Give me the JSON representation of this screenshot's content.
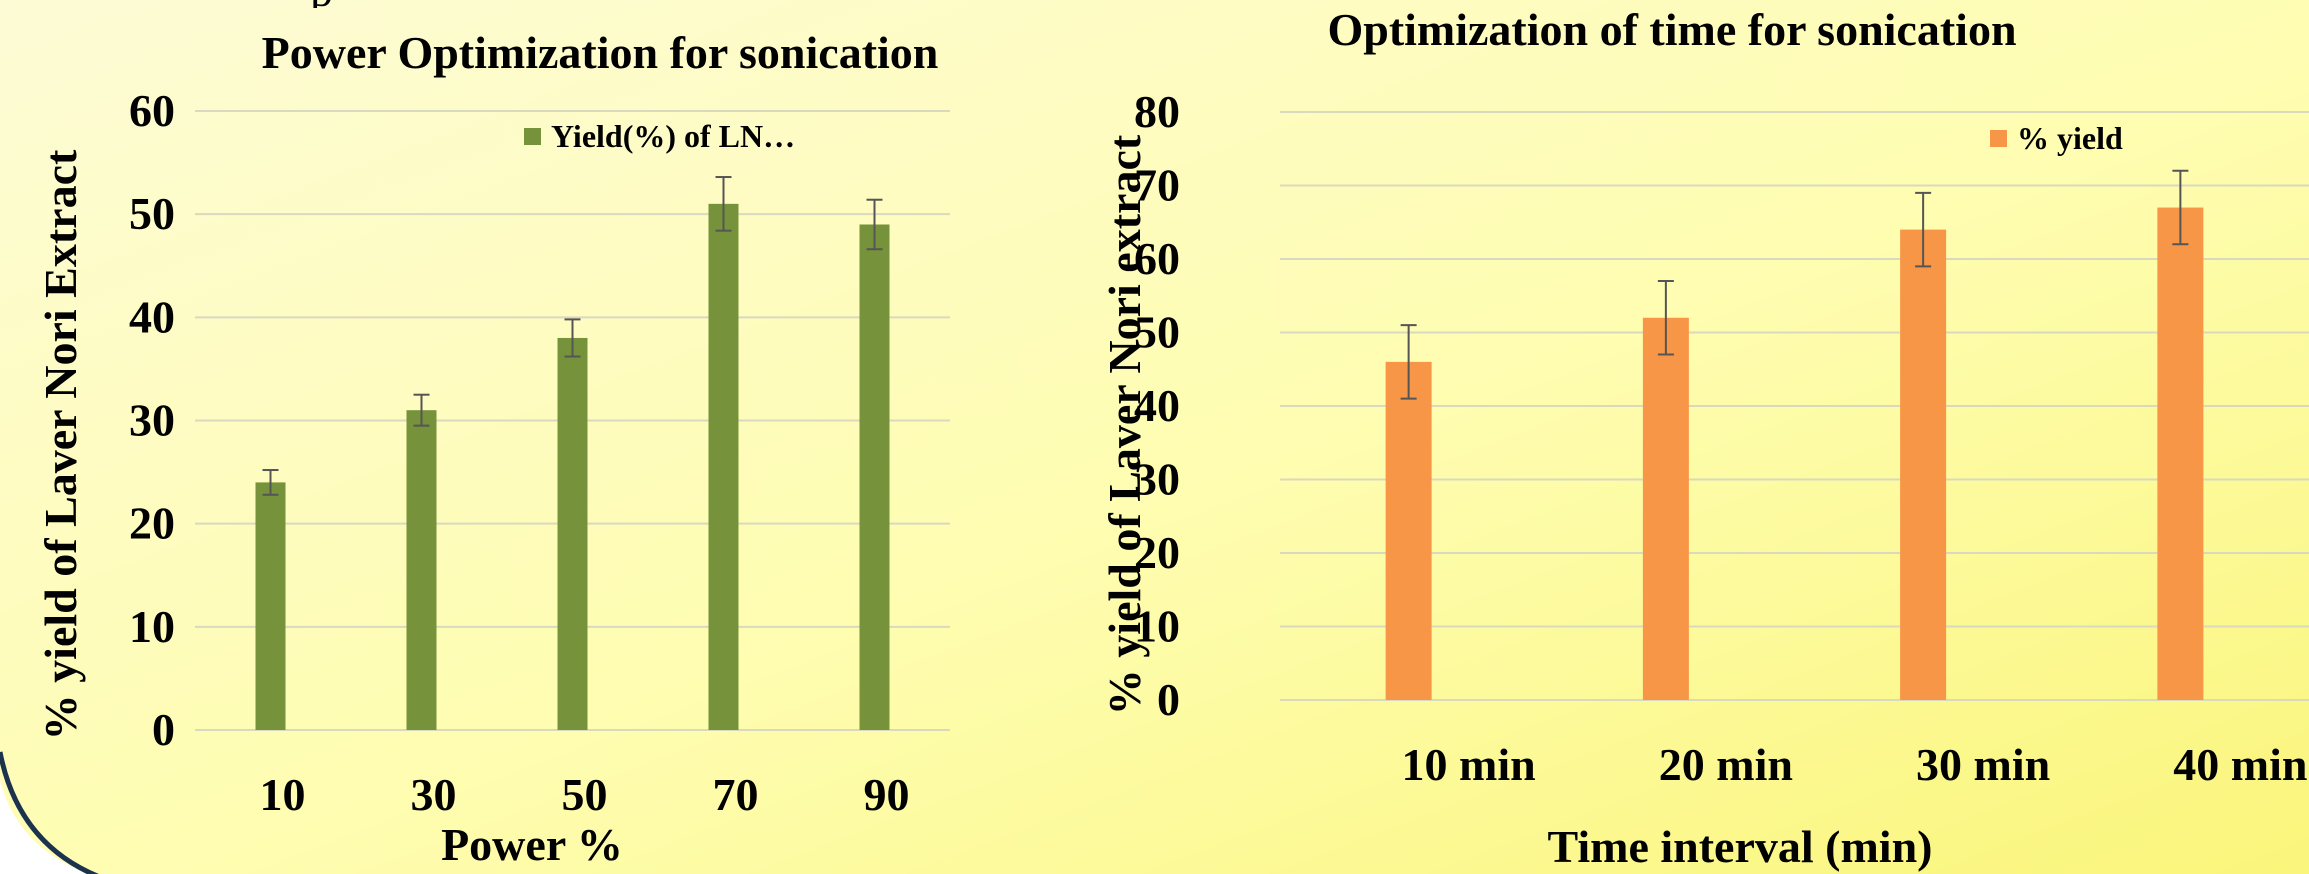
{
  "page": {
    "background_gradient": [
      "#fdfbd6",
      "#fefdb0",
      "#faf57a"
    ],
    "border_color": "#1c3350"
  },
  "chart_data": [
    {
      "type": "bar",
      "title": "Power Optimization for sonication",
      "xlabel": "Power %",
      "ylabel": "% yield of Laver Nori Extract",
      "categories": [
        "10",
        "30",
        "50",
        "70",
        "90"
      ],
      "series": [
        {
          "name": "Yield(%) of LN…",
          "color": "#76933c",
          "values": [
            24,
            31,
            38,
            51,
            49
          ],
          "error": [
            1.2,
            1.5,
            1.8,
            2.6,
            2.4
          ]
        }
      ],
      "ylim": [
        0,
        60
      ],
      "yticks": [
        0,
        10,
        20,
        30,
        40,
        50,
        60
      ],
      "grid": true,
      "legend_position": "top-right"
    },
    {
      "type": "bar",
      "title": "Optimization of time for sonication",
      "xlabel": "Time interval (min)",
      "ylabel": "% yield of Laver Nori extract",
      "categories": [
        "10 min",
        "20 min",
        "30 min",
        "40 min"
      ],
      "series": [
        {
          "name": "% yield",
          "color": "#f79646",
          "values": [
            46,
            52,
            64,
            67
          ],
          "error": [
            5,
            5,
            5,
            5
          ]
        }
      ],
      "ylim": [
        0,
        80
      ],
      "yticks": [
        0,
        10,
        20,
        30,
        40,
        50,
        60,
        70,
        80
      ],
      "grid": true,
      "legend_position": "top-right"
    }
  ]
}
